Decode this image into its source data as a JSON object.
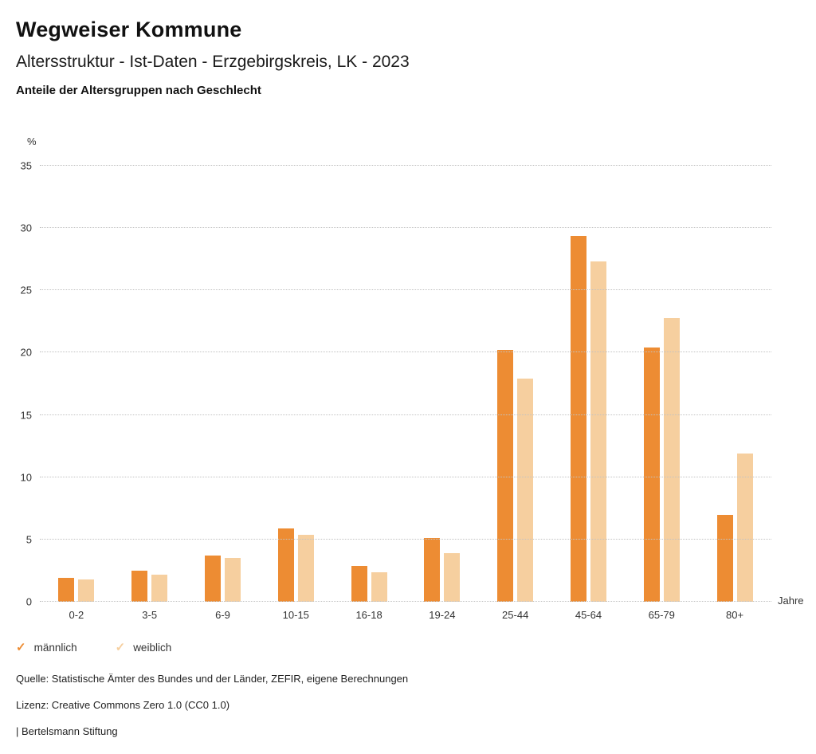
{
  "header": {
    "title": "Wegweiser Kommune",
    "subtitle": "Altersstruktur - Ist-Daten - Erzgebirgskreis, LK - 2023",
    "heading": "Anteile der Altersgruppen nach Geschlecht"
  },
  "chart_data": {
    "type": "bar",
    "title": "Anteile der Altersgruppen nach Geschlecht",
    "unit_label": "%",
    "x_axis_label": "Jahre",
    "categories": [
      "0-2",
      "3-5",
      "6-9",
      "10-15",
      "16-18",
      "19-24",
      "25-44",
      "45-64",
      "65-79",
      "80+"
    ],
    "series": [
      {
        "name": "männlich",
        "color": "#ED8C33",
        "values": [
          1.9,
          2.5,
          3.7,
          5.9,
          2.9,
          5.1,
          20.2,
          29.4,
          20.4,
          7.0
        ]
      },
      {
        "name": "weiblich",
        "color": "#F6CF9F",
        "values": [
          1.8,
          2.2,
          3.5,
          5.4,
          2.4,
          3.9,
          17.9,
          27.3,
          22.8,
          11.9
        ]
      }
    ],
    "ylim": [
      0,
      35
    ],
    "ytick_step": 5,
    "grid": true,
    "gridline_style": "dotted",
    "legend_position": "bottom",
    "legend_marker": "✓"
  },
  "footer": {
    "source": "Quelle: Statistische Ämter des Bundes und der Länder, ZEFIR, eigene Berechnungen",
    "license": "Lizenz: Creative Commons Zero 1.0 (CC0 1.0)",
    "attribution": "| Bertelsmann Stiftung"
  }
}
